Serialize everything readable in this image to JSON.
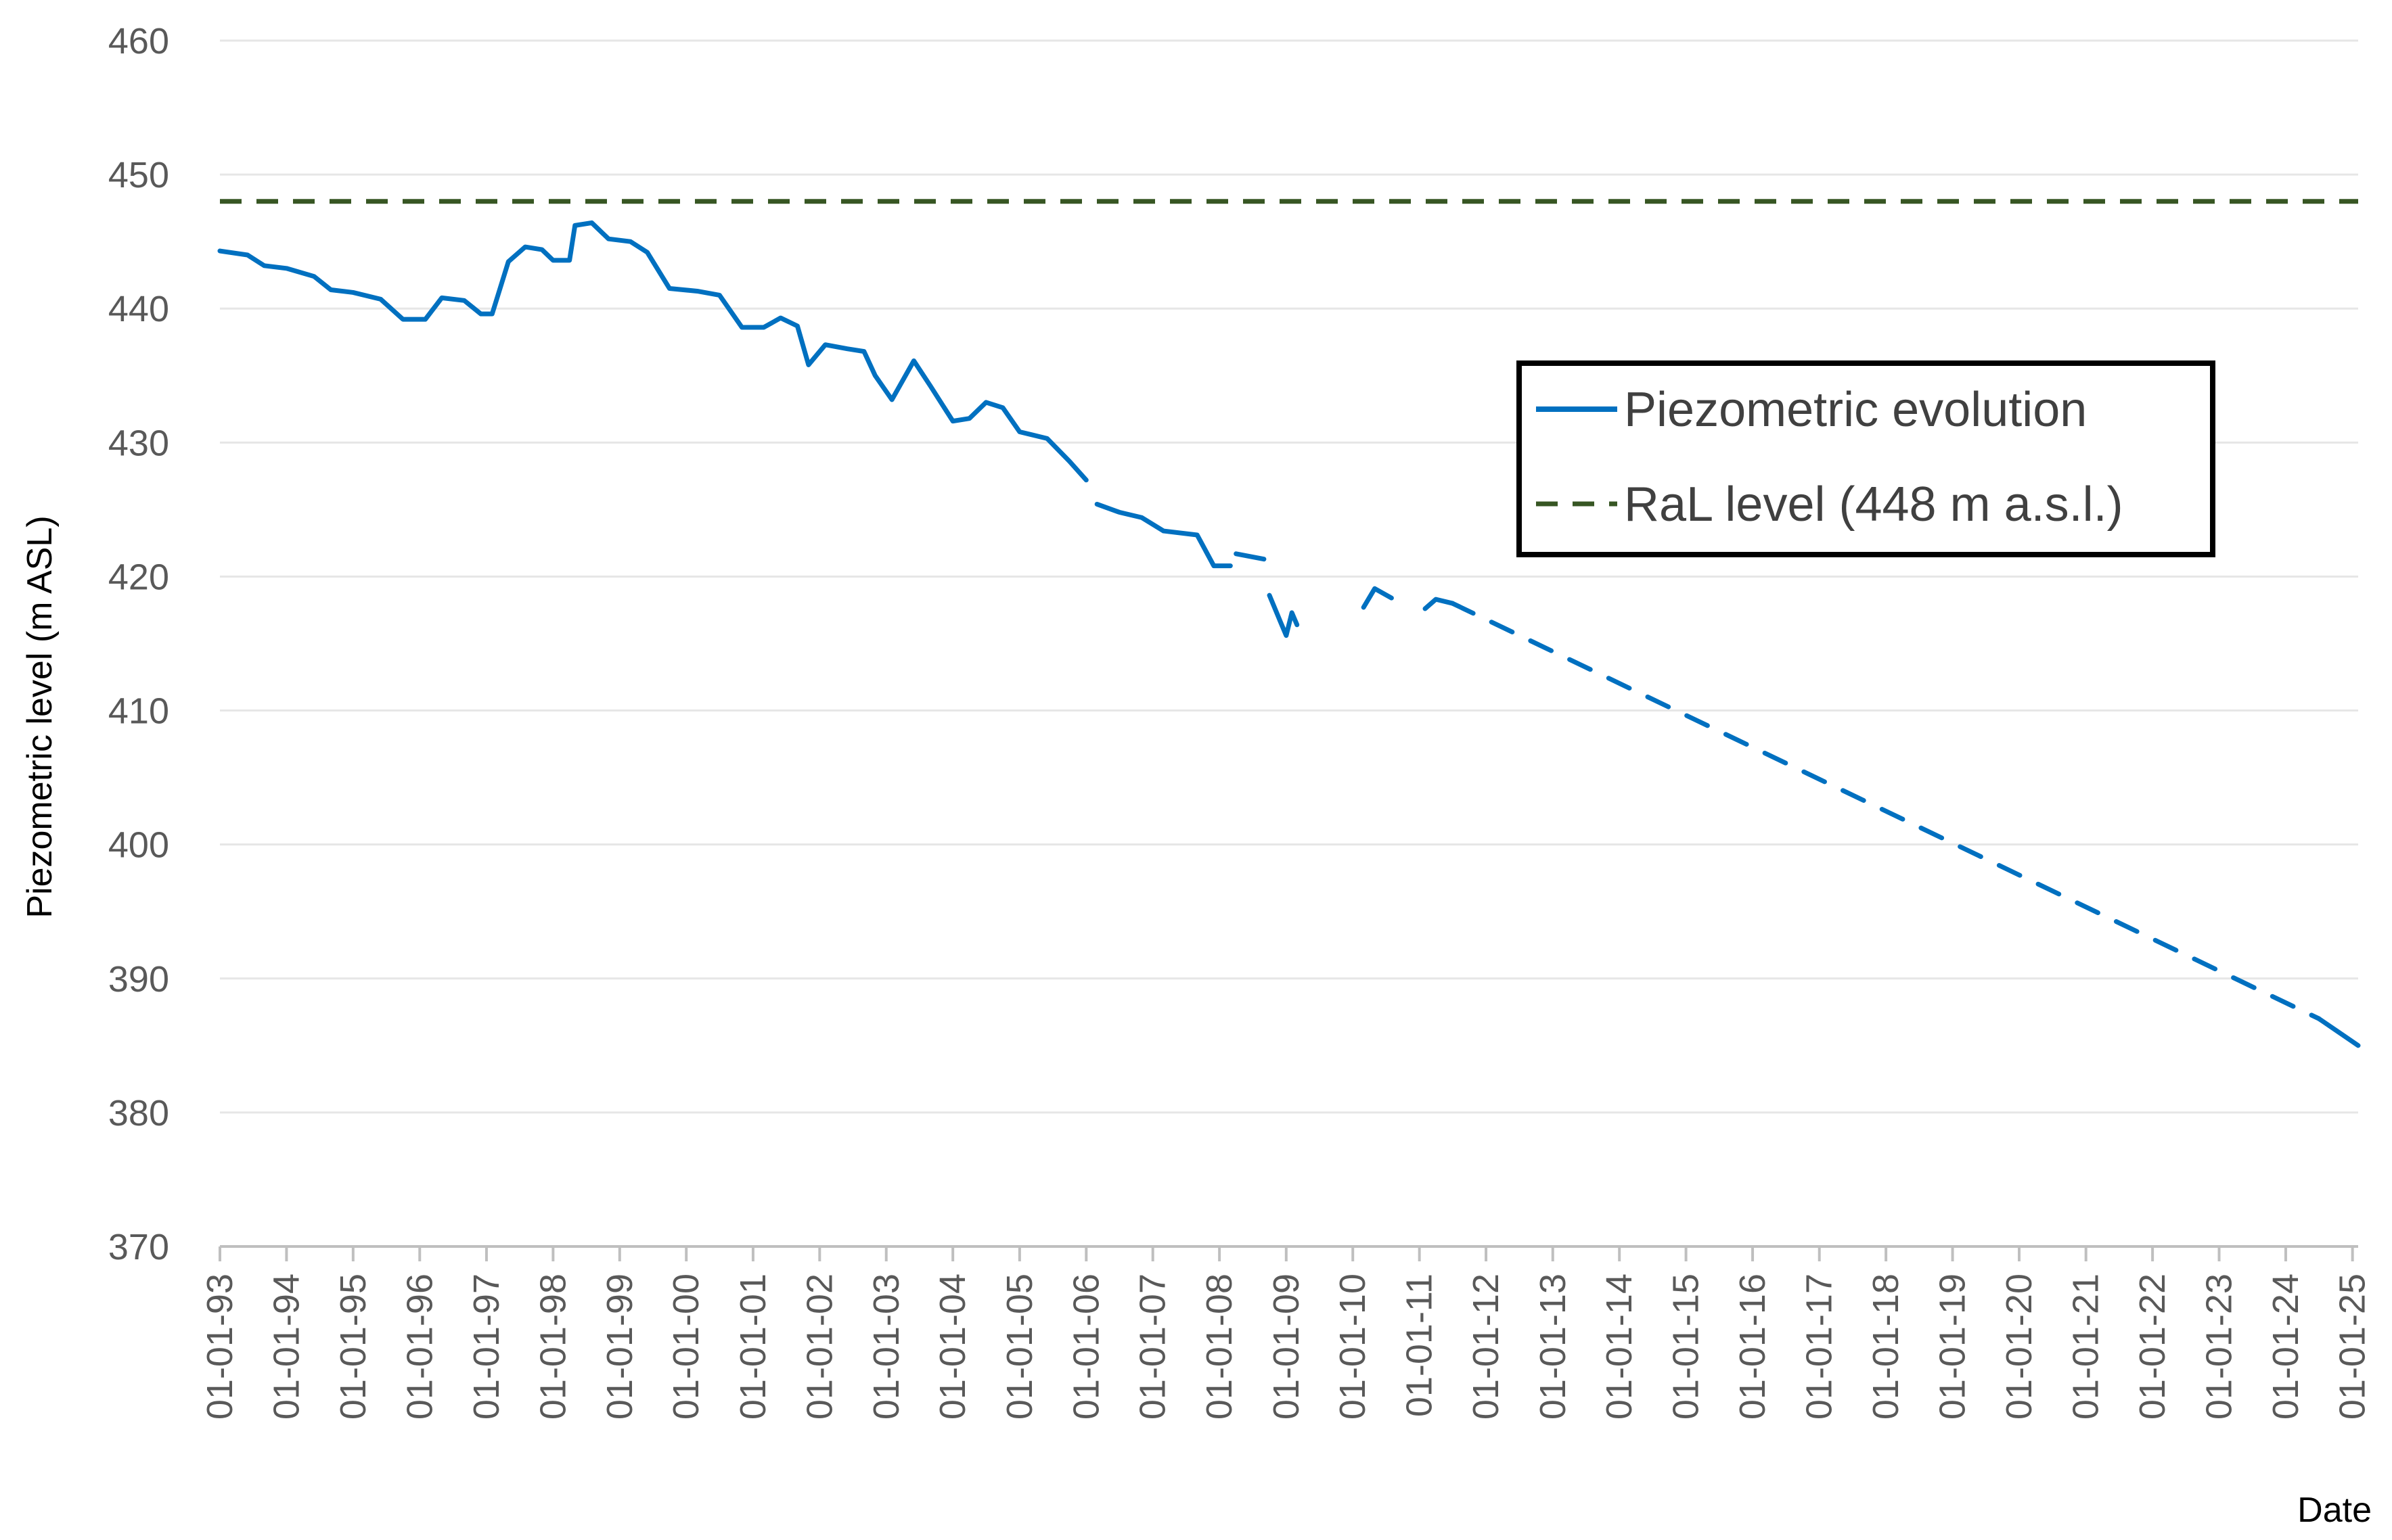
{
  "chart_data": {
    "type": "line",
    "title": "",
    "xlabel": "Date",
    "ylabel": "Piezometric level (m ASL)",
    "ylim": [
      370,
      460
    ],
    "yticks": [
      370,
      380,
      390,
      400,
      410,
      420,
      430,
      440,
      450,
      460
    ],
    "xlim": [
      "1993-01-01",
      "2025-02-01"
    ],
    "xtick_labels": [
      "01-01-93",
      "01-01-94",
      "01-01-95",
      "01-01-96",
      "01-01-97",
      "01-01-98",
      "01-01-99",
      "01-01-00",
      "01-01-01",
      "01-01-02",
      "01-01-03",
      "01-01-04",
      "01-01-05",
      "01-01-06",
      "01-01-07",
      "01-01-08",
      "01-01-09",
      "01-01-10",
      "01-01-11",
      "01-01-12",
      "01-01-13",
      "01-01-14",
      "01-01-15",
      "01-01-16",
      "01-01-17",
      "01-01-18",
      "01-01-19",
      "01-01-20",
      "01-01-21",
      "01-01-22",
      "01-01-23",
      "01-01-24",
      "01-01-25"
    ],
    "grid": "horizontal",
    "legend_position": "right-upper",
    "legend": [
      "Piezometric evolution",
      "RaL level (448 m a.s.l.)"
    ],
    "colors": {
      "piezometric": "#0070C0",
      "ral": "#375623",
      "grid": "#e6e6e6",
      "axis": "#bfbfbf"
    },
    "series": [
      {
        "name": "Piezometric evolution",
        "segments": [
          {
            "style": "solid",
            "points": [
              [
                "1993-01-01",
                444.3
              ],
              [
                "1993-06-01",
                444.0
              ],
              [
                "1993-09-01",
                443.2
              ],
              [
                "1994-01-01",
                443.0
              ],
              [
                "1994-06-01",
                442.4
              ],
              [
                "1994-09-01",
                441.4
              ],
              [
                "1995-01-01",
                441.2
              ],
              [
                "1995-06-01",
                440.7
              ],
              [
                "1995-10-01",
                439.2
              ],
              [
                "1996-02-01",
                439.2
              ],
              [
                "1996-05-01",
                440.8
              ],
              [
                "1996-09-01",
                440.6
              ],
              [
                "1996-12-01",
                439.6
              ],
              [
                "1997-02-01",
                439.6
              ],
              [
                "1997-05-01",
                443.5
              ],
              [
                "1997-08-01",
                444.6
              ],
              [
                "1997-11-01",
                444.4
              ],
              [
                "1998-01-01",
                443.6
              ],
              [
                "1998-04-01",
                443.6
              ],
              [
                "1998-05-01",
                446.2
              ],
              [
                "1998-08-01",
                446.4
              ],
              [
                "1998-11-01",
                445.2
              ],
              [
                "1999-03-01",
                445.0
              ],
              [
                "1999-06-01",
                444.2
              ],
              [
                "1999-10-01",
                441.5
              ],
              [
                "2000-03-01",
                441.3
              ],
              [
                "2000-07-01",
                441.0
              ],
              [
                "2000-11-01",
                438.6
              ],
              [
                "2001-03-01",
                438.6
              ],
              [
                "2001-06-01",
                439.3
              ],
              [
                "2001-09-01",
                438.7
              ],
              [
                "2001-11-01",
                435.8
              ],
              [
                "2002-02-01",
                437.3
              ],
              [
                "2002-06-01",
                437.0
              ],
              [
                "2002-09-01",
                436.8
              ],
              [
                "2002-11-01",
                435.0
              ],
              [
                "2003-02-01",
                433.2
              ],
              [
                "2003-06-01",
                436.1
              ],
              [
                "2003-09-01",
                434.2
              ],
              [
                "2004-01-01",
                431.6
              ],
              [
                "2004-04-01",
                431.8
              ],
              [
                "2004-07-01",
                433.0
              ],
              [
                "2004-10-01",
                432.6
              ],
              [
                "2005-01-01",
                430.8
              ],
              [
                "2005-06-01",
                430.3
              ],
              [
                "2005-10-01",
                428.6
              ],
              [
                "2006-01-01",
                427.2
              ]
            ]
          },
          {
            "style": "solid",
            "points": [
              [
                "2006-03-01",
                425.4
              ],
              [
                "2006-07-01",
                424.8
              ],
              [
                "2006-11-01",
                424.4
              ],
              [
                "2007-03-01",
                423.4
              ],
              [
                "2007-09-01",
                423.1
              ],
              [
                "2007-12-01",
                420.8
              ],
              [
                "2008-03-01",
                420.8
              ]
            ]
          },
          {
            "style": "solid",
            "points": [
              [
                "2008-04-01",
                421.7
              ],
              [
                "2008-09-01",
                421.3
              ]
            ]
          },
          {
            "style": "solid",
            "points": [
              [
                "2008-10-01",
                418.6
              ],
              [
                "2008-12-01",
                416.6
              ],
              [
                "2009-01-01",
                415.6
              ],
              [
                "2009-02-01",
                417.3
              ],
              [
                "2009-03-01",
                416.4
              ]
            ]
          },
          {
            "style": "solid",
            "points": [
              [
                "2010-03-01",
                417.7
              ],
              [
                "2010-05-01",
                419.1
              ],
              [
                "2010-08-01",
                418.4
              ]
            ]
          },
          {
            "style": "solid",
            "points": [
              [
                "2011-02-01",
                417.6
              ],
              [
                "2011-04-01",
                418.3
              ],
              [
                "2011-07-01",
                418.0
              ]
            ]
          },
          {
            "style": "dashed",
            "points": [
              [
                "2011-07-01",
                418.0
              ],
              [
                "2024-07-01",
                387.0
              ]
            ]
          },
          {
            "style": "solid",
            "points": [
              [
                "2024-07-01",
                387.0
              ],
              [
                "2025-02-01",
                385.0
              ]
            ]
          }
        ]
      },
      {
        "name": "RaL level (448 m a.s.l.)",
        "style": "dashed",
        "points": [
          [
            "1993-01-01",
            448
          ],
          [
            "2025-02-01",
            448
          ]
        ]
      }
    ]
  }
}
